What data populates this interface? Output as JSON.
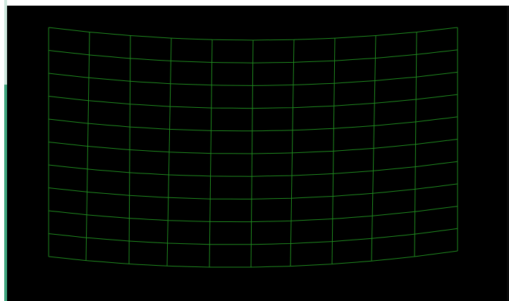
{
  "viewport": {
    "background": "#000000",
    "grid_color": "#1f8a1f",
    "mesh": {
      "columns": 10,
      "rows": 10,
      "description_free": true
    }
  },
  "scrollbar": {
    "track_color": "#cfe9df",
    "thumb_color": "#3fa67f"
  }
}
